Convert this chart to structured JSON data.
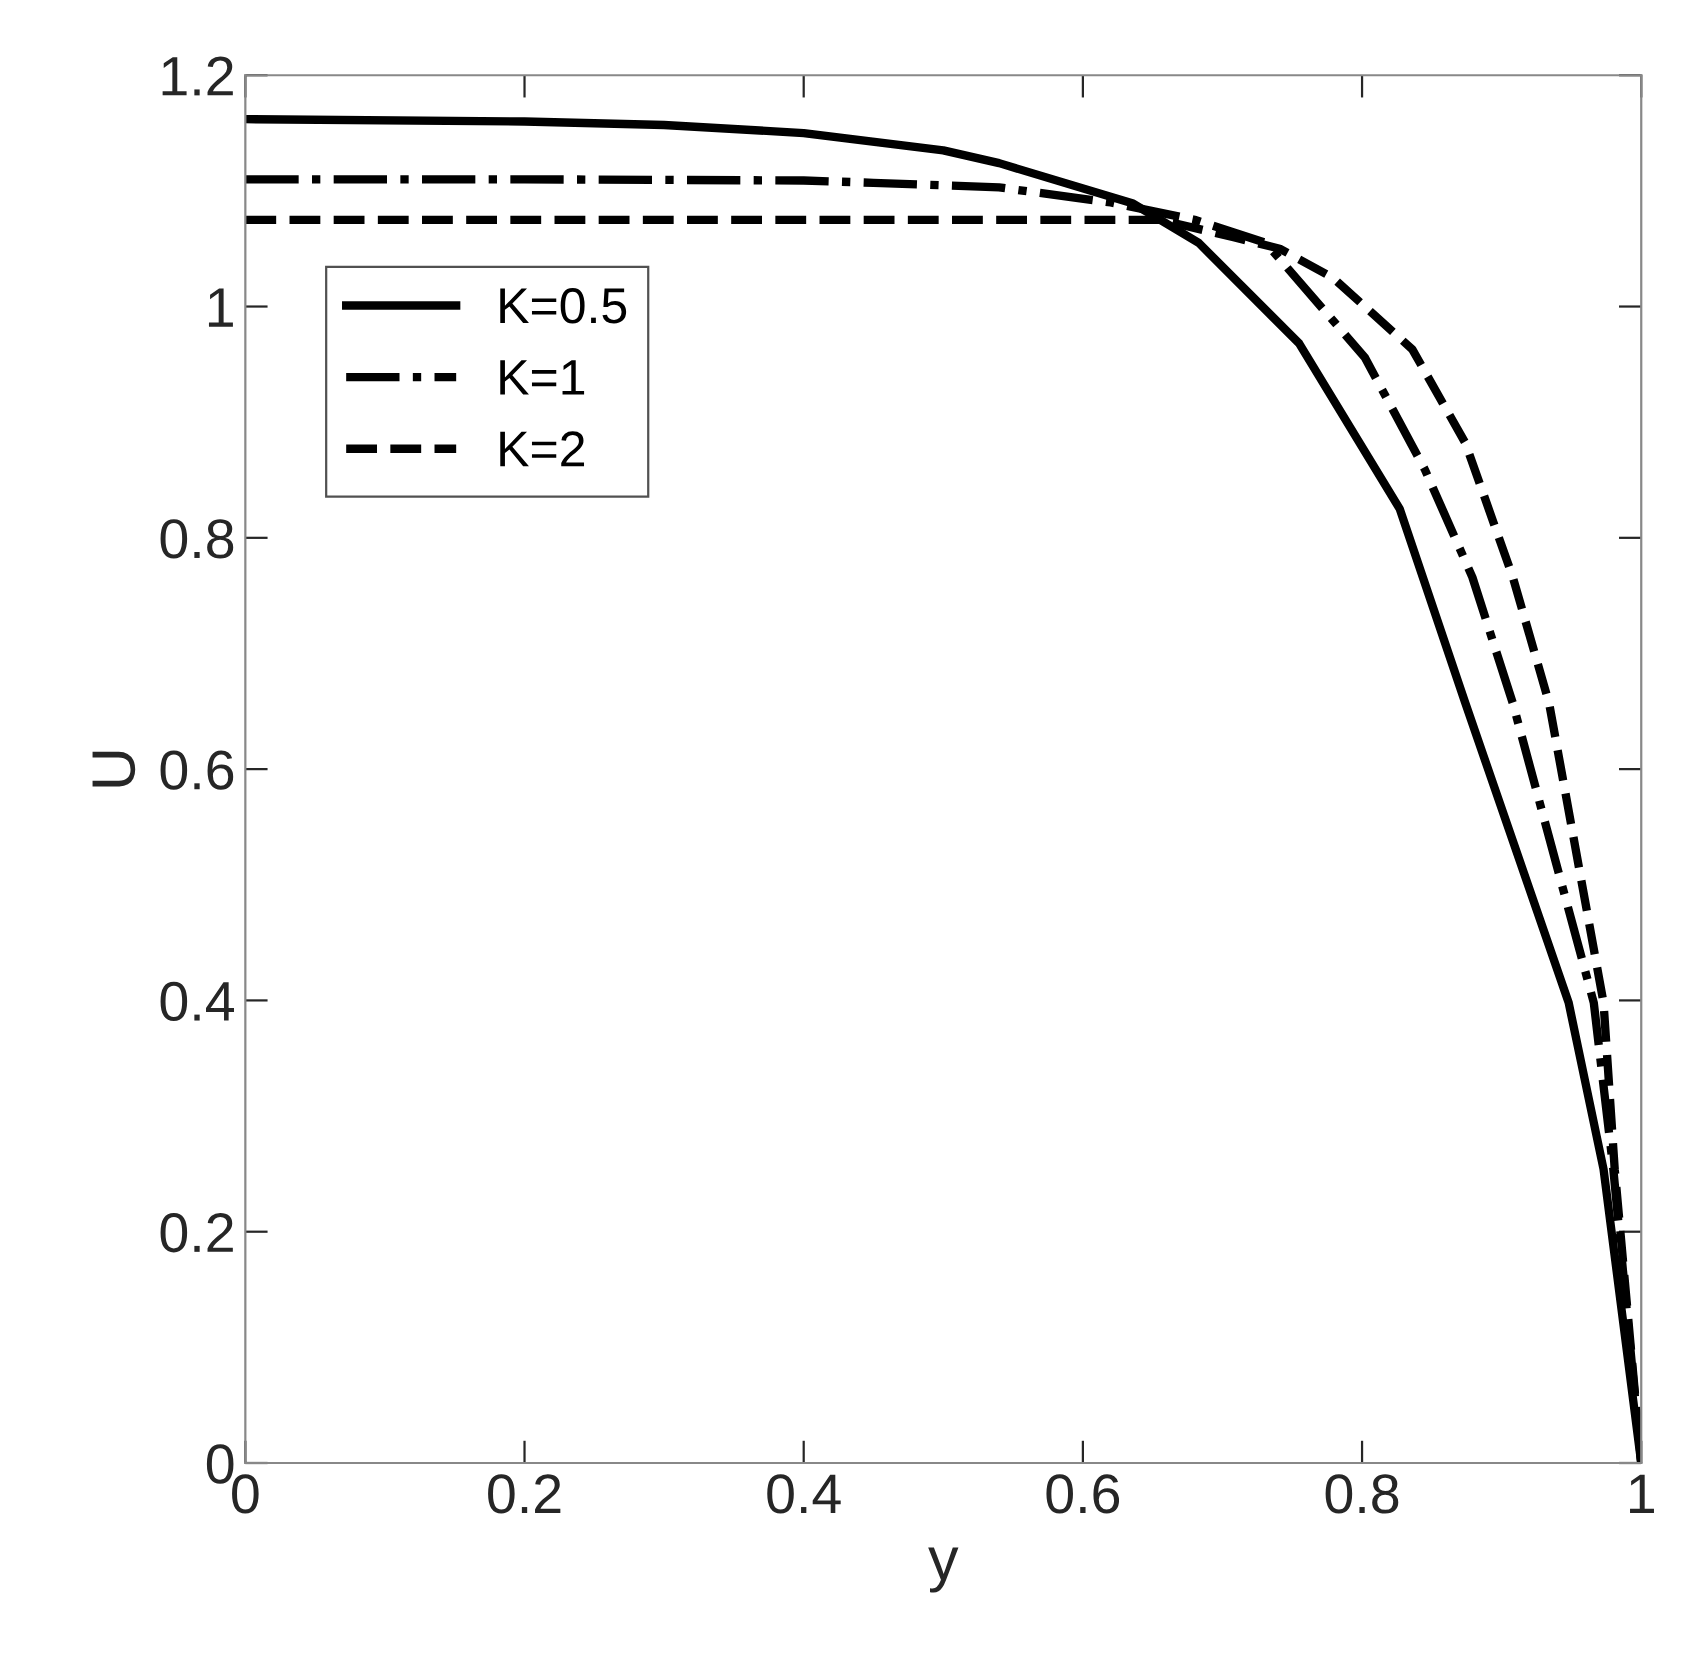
{
  "chart_data": {
    "type": "line",
    "xlabel": "y",
    "ylabel": "U",
    "xlim": [
      0,
      1
    ],
    "ylim": [
      0,
      1.2
    ],
    "xticks": [
      0,
      0.2,
      0.4,
      0.6,
      0.8,
      1
    ],
    "yticks": [
      0,
      0.2,
      0.4,
      0.6,
      0.8,
      1,
      1.2
    ],
    "grid": false,
    "legend": "top left",
    "marker": "none",
    "series": [
      {
        "name": "K=0.5",
        "color": "#000000",
        "line_style": "solid",
        "x": [
          0,
          0.2,
          0.3,
          0.4,
          0.5,
          0.54,
          0.636,
          0.683,
          0.755,
          0.827,
          0.874,
          0.948,
          0.973,
          1
        ],
        "values": [
          1.162,
          1.16,
          1.157,
          1.15,
          1.135,
          1.124,
          1.089,
          1.055,
          0.968,
          0.825,
          0.657,
          0.398,
          0.254,
          0
        ]
      },
      {
        "name": "K=1",
        "color": "#000000",
        "line_style": "dashdot",
        "x": [
          0,
          0.2,
          0.4,
          0.45,
          0.54,
          0.62,
          0.68,
          0.731,
          0.802,
          0.845,
          0.879,
          0.908,
          0.966,
          0.98,
          1
        ],
        "values": [
          1.11,
          1.11,
          1.109,
          1.107,
          1.103,
          1.09,
          1.075,
          1.055,
          0.956,
          0.859,
          0.766,
          0.657,
          0.398,
          0.254,
          0
        ]
      },
      {
        "name": "K=2",
        "color": "#000000",
        "line_style": "dashed",
        "x": [
          0,
          0.2,
          0.4,
          0.6,
          0.655,
          0.708,
          0.741,
          0.779,
          0.836,
          0.874,
          0.908,
          0.934,
          0.973,
          0.981,
          1
        ],
        "values": [
          1.075,
          1.075,
          1.075,
          1.075,
          1.075,
          1.06,
          1.05,
          1.025,
          0.963,
          0.882,
          0.766,
          0.657,
          0.398,
          0.254,
          0
        ]
      }
    ]
  }
}
